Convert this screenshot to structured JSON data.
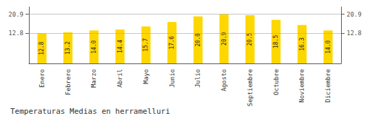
{
  "chart_data": {
    "type": "bar",
    "title": "Temperaturas Medias en herramelluri",
    "categories": [
      "Enero",
      "Febrero",
      "Marzo",
      "Abril",
      "Mayo",
      "Junio",
      "Julio",
      "Agosto",
      "Septiembre",
      "Octubre",
      "Noviembre",
      "Diciembre"
    ],
    "values": [
      12.8,
      13.2,
      14.0,
      14.4,
      15.7,
      17.6,
      20.0,
      20.9,
      20.5,
      18.5,
      16.3,
      14.0
    ],
    "value_labels": [
      "12.8",
      "13.2",
      "14.0",
      "14.4",
      "15.7",
      "17.6",
      "20.0",
      "20.9",
      "20.5",
      "18.5",
      "16.3",
      "14.0"
    ],
    "data_labels": true,
    "color": "#FFD700",
    "ylim": [
      0,
      24.0
    ],
    "yticks": [
      12.8,
      20.9
    ],
    "grid": true
  }
}
